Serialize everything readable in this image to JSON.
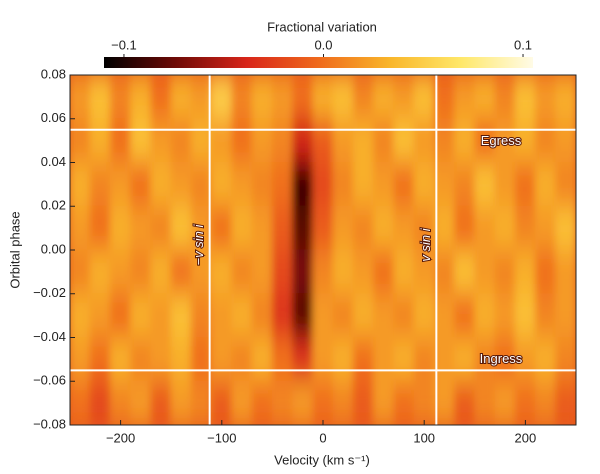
{
  "chart_data": {
    "type": "heatmap",
    "colorbar_label": "Fractional variation",
    "clim": [
      -0.11,
      0.105
    ],
    "cticks": [
      {
        "value": -0.1,
        "label": "−0.1"
      },
      {
        "value": 0.0,
        "label": "0.0"
      },
      {
        "value": 0.1,
        "label": "0.1"
      }
    ],
    "colormap": [
      "#000000",
      "#6e0a06",
      "#d8261a",
      "#ef6a1c",
      "#f9b62a",
      "#ffe86a",
      "#fffbe6"
    ],
    "x_label": "Velocity (km s⁻¹)",
    "y_label": "Orbital phase",
    "xlim": [
      -250,
      250
    ],
    "ylim": [
      -0.08,
      0.08
    ],
    "xticks": [
      {
        "value": -200,
        "label": "−200"
      },
      {
        "value": -100,
        "label": "−100"
      },
      0,
      100,
      200
    ],
    "yticks": [
      {
        "value": -0.08,
        "label": "−0.08"
      },
      {
        "value": -0.06,
        "label": "−0.06"
      },
      {
        "value": -0.04,
        "label": "−0.04"
      },
      {
        "value": -0.02,
        "label": "−0.02"
      },
      {
        "value": 0.0,
        "label": "0.00"
      },
      {
        "value": 0.02,
        "label": "0.02"
      },
      {
        "value": 0.04,
        "label": "0.04"
      },
      {
        "value": 0.06,
        "label": "0.06"
      },
      {
        "value": 0.08,
        "label": "0.08"
      }
    ],
    "x": [
      -240,
      -220,
      -200,
      -180,
      -160,
      -140,
      -120,
      -100,
      -80,
      -60,
      -40,
      -20,
      0,
      20,
      40,
      60,
      80,
      100,
      120,
      140,
      160,
      180,
      200,
      220,
      240
    ],
    "y": [
      0.07,
      0.05,
      0.03,
      0.01,
      -0.01,
      -0.03,
      -0.05,
      -0.07
    ],
    "values": [
      [
        0.02,
        0.04,
        0.01,
        0.03,
        0.0,
        0.03,
        0.02,
        0.05,
        0.01,
        0.03,
        0.02,
        0.0,
        0.03,
        0.04,
        0.01,
        0.03,
        0.02,
        0.04,
        0.0,
        0.02,
        0.03,
        0.01,
        0.04,
        0.02,
        0.03
      ],
      [
        0.01,
        0.03,
        0.0,
        0.04,
        0.02,
        0.01,
        0.03,
        0.02,
        0.0,
        0.02,
        0.01,
        -0.04,
        -0.01,
        0.02,
        0.03,
        0.01,
        0.04,
        0.02,
        0.01,
        0.03,
        0.0,
        0.02,
        0.03,
        0.01,
        0.02
      ],
      [
        0.03,
        0.01,
        0.02,
        0.0,
        0.03,
        0.02,
        0.01,
        0.03,
        0.02,
        0.01,
        0.0,
        -0.09,
        -0.02,
        0.01,
        0.03,
        0.02,
        0.0,
        0.03,
        0.02,
        0.01,
        0.04,
        0.02,
        0.0,
        0.03,
        0.01
      ],
      [
        0.02,
        0.0,
        0.03,
        0.02,
        0.01,
        0.04,
        0.02,
        0.0,
        0.03,
        0.02,
        -0.01,
        -0.08,
        -0.01,
        0.02,
        0.01,
        0.03,
        0.02,
        0.01,
        0.03,
        0.0,
        0.02,
        0.03,
        0.01,
        0.02,
        0.04
      ],
      [
        0.01,
        0.03,
        0.02,
        0.01,
        0.03,
        0.0,
        0.02,
        0.03,
        0.01,
        0.02,
        -0.02,
        -0.07,
        0.01,
        0.03,
        0.02,
        0.0,
        0.03,
        0.02,
        0.01,
        0.04,
        0.02,
        0.01,
        0.03,
        0.0,
        0.02
      ],
      [
        0.03,
        0.02,
        0.0,
        0.03,
        0.02,
        0.04,
        0.01,
        0.02,
        0.03,
        0.01,
        -0.03,
        -0.08,
        0.02,
        0.01,
        0.03,
        0.02,
        0.01,
        0.03,
        0.02,
        0.0,
        0.03,
        0.02,
        0.04,
        0.01,
        0.02
      ],
      [
        0.02,
        0.0,
        0.03,
        0.01,
        0.02,
        0.03,
        0.0,
        0.02,
        0.01,
        0.03,
        0.0,
        -0.03,
        0.02,
        0.03,
        0.0,
        0.02,
        0.03,
        0.01,
        0.02,
        0.03,
        0.01,
        0.0,
        0.02,
        0.03,
        0.01
      ],
      [
        0.0,
        -0.02,
        0.01,
        0.02,
        -0.01,
        0.02,
        0.01,
        -0.01,
        0.02,
        0.0,
        0.01,
        0.02,
        0.0,
        0.01,
        -0.01,
        0.02,
        0.0,
        0.01,
        0.02,
        -0.01,
        0.01,
        0.02,
        0.0,
        0.01,
        -0.01
      ]
    ],
    "lines": [
      {
        "axis": "x",
        "value": -112,
        "label": "−v sin i"
      },
      {
        "axis": "x",
        "value": 112,
        "label": "v sin i"
      },
      {
        "axis": "y",
        "value": 0.055,
        "label": "Egress"
      },
      {
        "axis": "y",
        "value": -0.055,
        "label": "Ingress"
      }
    ]
  }
}
